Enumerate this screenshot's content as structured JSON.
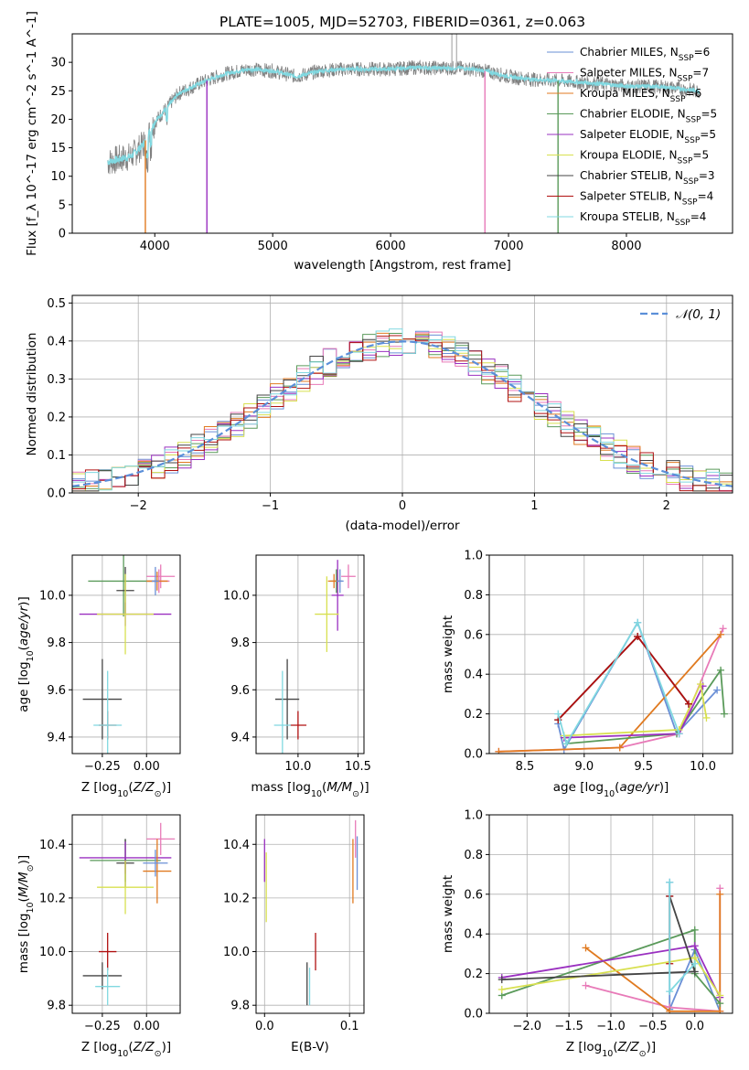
{
  "figure_title": "PLATE=1005, MJD=52703, FIBERID=0361, z=0.063",
  "legend": [
    {
      "label": "Chabrier MILES, N",
      "sub": "SSP",
      "suffix": "=6",
      "color": "#6a8fd6"
    },
    {
      "label": "Salpeter MILES, N",
      "sub": "SSP",
      "suffix": "=7",
      "color": "#e87ab8"
    },
    {
      "label": "Kroupa MILES, N",
      "sub": "SSP",
      "suffix": "=6",
      "color": "#e07a20"
    },
    {
      "label": "Chabrier ELODIE, N",
      "sub": "SSP",
      "suffix": "=5",
      "color": "#5a9a5a"
    },
    {
      "label": "Salpeter ELODIE, N",
      "sub": "SSP",
      "suffix": "=5",
      "color": "#9a30c0"
    },
    {
      "label": "Kroupa ELODIE, N",
      "sub": "SSP",
      "suffix": "=5",
      "color": "#d8e050"
    },
    {
      "label": "Chabrier STELIB, N",
      "sub": "SSP",
      "suffix": "=3",
      "color": "#444444"
    },
    {
      "label": "Salpeter STELIB, N",
      "sub": "SSP",
      "suffix": "=4",
      "color": "#b01010"
    },
    {
      "label": "Kroupa STELIB, N",
      "sub": "SSP",
      "suffix": "=4",
      "color": "#80d8e0"
    }
  ],
  "chart_data": [
    {
      "id": "spectrum",
      "type": "line",
      "title": "PLATE=1005, MJD=52703, FIBERID=0361, z=0.063",
      "xlabel": "wavelength [Angstrom, rest frame]",
      "ylabel": "Flux [f_λ 10^-17 erg cm^-2 s^-1 A^-1]",
      "xlim": [
        3300,
        8900
      ],
      "ylim": [
        0,
        35
      ],
      "xticks": [
        4000,
        5000,
        6000,
        7000,
        8000
      ],
      "yticks": [
        0,
        5,
        10,
        15,
        20,
        25,
        30
      ],
      "data_color": "#808080",
      "model_color": "#80d8e0",
      "continuum_points": [
        {
          "x": 3600,
          "y": 12.5
        },
        {
          "x": 3800,
          "y": 13.5
        },
        {
          "x": 3900,
          "y": 15.5
        },
        {
          "x": 4000,
          "y": 19.5
        },
        {
          "x": 4200,
          "y": 24.5
        },
        {
          "x": 4400,
          "y": 26.5
        },
        {
          "x": 4600,
          "y": 28
        },
        {
          "x": 4800,
          "y": 28.8
        },
        {
          "x": 5000,
          "y": 28.5
        },
        {
          "x": 5200,
          "y": 27.5
        },
        {
          "x": 5400,
          "y": 28.5
        },
        {
          "x": 5600,
          "y": 28.8
        },
        {
          "x": 5800,
          "y": 28.8
        },
        {
          "x": 6000,
          "y": 28.8
        },
        {
          "x": 6200,
          "y": 29.1
        },
        {
          "x": 6400,
          "y": 29
        },
        {
          "x": 6600,
          "y": 29
        },
        {
          "x": 6800,
          "y": 28.5
        },
        {
          "x": 7000,
          "y": 27.5
        },
        {
          "x": 7200,
          "y": 27
        },
        {
          "x": 7400,
          "y": 26.8
        },
        {
          "x": 7600,
          "y": 26.5
        },
        {
          "x": 7800,
          "y": 26.2
        },
        {
          "x": 8000,
          "y": 25.8
        },
        {
          "x": 8200,
          "y": 25.8
        },
        {
          "x": 8400,
          "y": 25.5
        },
        {
          "x": 8600,
          "y": 25
        }
      ],
      "spikes": [
        {
          "x": 3920,
          "y": 0
        },
        {
          "x": 4442,
          "y": 0
        },
        {
          "x": 6520,
          "y": 35
        },
        {
          "x": 6560,
          "y": 35
        },
        {
          "x": 6800,
          "y": 0
        },
        {
          "x": 7420,
          "y": 0
        }
      ]
    },
    {
      "id": "residual_hist",
      "type": "histogram",
      "xlabel": "(data-model)/error",
      "ylabel": "Normed distribution",
      "xlim": [
        -2.5,
        2.5
      ],
      "ylim": [
        0,
        0.52
      ],
      "xticks": [
        -2,
        -1,
        0,
        1,
        2
      ],
      "yticks": [
        0.0,
        0.1,
        0.2,
        0.3,
        0.4,
        0.5
      ],
      "legend_label": "𝒩(0, 1)",
      "gaussian_color": "#5b8fd9",
      "bin_width": 0.1
    },
    {
      "id": "age_vs_Z",
      "type": "scatter",
      "xlabel": "Z [log10(Z/Z⊙)]",
      "ylabel": "age [log10(age/yr)]",
      "xlim": [
        -0.42,
        0.19
      ],
      "ylim": [
        9.33,
        10.17
      ],
      "xticks": [
        -0.25,
        0.0
      ],
      "yticks": [
        9.4,
        9.6,
        9.8,
        10.0
      ],
      "points": [
        {
          "x": -0.25,
          "y": 9.56,
          "xerr": 0.11,
          "yerr": 0.17,
          "color": "#444444"
        },
        {
          "x": -0.22,
          "y": 9.45,
          "xerr": 0.05,
          "yerr": 0.06,
          "color": "#b01010"
        },
        {
          "x": -0.22,
          "y": 9.45,
          "xerr": 0.08,
          "yerr": 0.23,
          "color": "#80d8e0"
        },
        {
          "x": -0.13,
          "y": 10.06,
          "xerr": 0.2,
          "yerr": 0.15,
          "color": "#5a9a5a"
        },
        {
          "x": -0.12,
          "y": 10.02,
          "xerr": 0.05,
          "yerr": 0.1,
          "color": "#444444"
        },
        {
          "x": -0.12,
          "y": 9.92,
          "xerr": 0.26,
          "yerr": 0.05,
          "color": "#9a30c0"
        },
        {
          "x": -0.12,
          "y": 9.92,
          "xerr": 0.16,
          "yerr": 0.17,
          "color": "#d8e050"
        },
        {
          "x": 0.07,
          "y": 10.06,
          "xerr": 0.06,
          "yerr": 0.05,
          "color": "#e87ab8"
        },
        {
          "x": 0.08,
          "y": 10.08,
          "xerr": 0.08,
          "yerr": 0.05,
          "color": "#e87ab8"
        },
        {
          "x": 0.06,
          "y": 10.06,
          "xerr": 0.06,
          "yerr": 0.04,
          "color": "#e07a20"
        },
        {
          "x": 0.05,
          "y": 10.06,
          "xerr": 0.02,
          "yerr": 0.06,
          "color": "#6a8fd6"
        }
      ]
    },
    {
      "id": "age_vs_mass",
      "type": "scatter",
      "xlabel": "mass [log10(M/M⊙)]",
      "ylabel": "",
      "xlim": [
        9.65,
        10.55
      ],
      "ylim": [
        9.33,
        10.17
      ],
      "xticks": [
        10.0,
        10.5
      ],
      "yticks": [
        9.4,
        9.6,
        9.8,
        10.0
      ],
      "points": [
        {
          "x": 9.91,
          "y": 9.56,
          "xerr": 0.1,
          "yerr": 0.17,
          "color": "#444444"
        },
        {
          "x": 10.0,
          "y": 9.45,
          "xerr": 0.07,
          "yerr": 0.06,
          "color": "#b01010"
        },
        {
          "x": 9.87,
          "y": 9.45,
          "xerr": 0.07,
          "yerr": 0.23,
          "color": "#80d8e0"
        },
        {
          "x": 10.32,
          "y": 10.06,
          "xerr": 0.05,
          "yerr": 0.05,
          "color": "#5a9a5a"
        },
        {
          "x": 10.33,
          "y": 10.0,
          "xerr": 0.05,
          "yerr": 0.15,
          "color": "#9a30c0"
        },
        {
          "x": 10.24,
          "y": 9.92,
          "xerr": 0.1,
          "yerr": 0.16,
          "color": "#d8e050"
        },
        {
          "x": 10.42,
          "y": 10.08,
          "xerr": 0.06,
          "yerr": 0.05,
          "color": "#e87ab8"
        },
        {
          "x": 10.3,
          "y": 10.06,
          "xerr": 0.05,
          "yerr": 0.03,
          "color": "#e07a20"
        },
        {
          "x": 10.35,
          "y": 10.06,
          "xerr": 0.03,
          "yerr": 0.05,
          "color": "#6a8fd6"
        }
      ]
    },
    {
      "id": "massweight_vs_age",
      "type": "line",
      "xlabel": "age [log10(age/yr)]",
      "ylabel": "mass weight",
      "xlim": [
        8.2,
        10.25
      ],
      "ylim": [
        0.0,
        1.0
      ],
      "xticks": [
        8.5,
        9.0,
        9.5,
        10.0
      ],
      "yticks": [
        0.0,
        0.2,
        0.4,
        0.6,
        0.8,
        1.0
      ],
      "series": [
        {
          "color": "#6a8fd6",
          "x": [
            8.78,
            8.83,
            9.45,
            9.78,
            10.12
          ],
          "y": [
            0.15,
            0.02,
            0.66,
            0.1,
            0.32
          ]
        },
        {
          "color": "#e87ab8",
          "x": [
            8.28,
            9.3,
            9.8,
            10.17
          ],
          "y": [
            0.01,
            0.03,
            0.1,
            0.63
          ]
        },
        {
          "color": "#e07a20",
          "x": [
            8.28,
            9.3,
            10.15
          ],
          "y": [
            0.01,
            0.03,
            0.6
          ]
        },
        {
          "color": "#5a9a5a",
          "x": [
            8.85,
            9.78,
            10.15,
            10.18
          ],
          "y": [
            0.05,
            0.1,
            0.42,
            0.2
          ]
        },
        {
          "color": "#9a30c0",
          "x": [
            8.83,
            9.8,
            10.0
          ],
          "y": [
            0.08,
            0.1,
            0.34
          ]
        },
        {
          "color": "#d8e050",
          "x": [
            8.83,
            9.8,
            9.98,
            10.03
          ],
          "y": [
            0.09,
            0.12,
            0.35,
            0.18
          ]
        },
        {
          "color": "#444444",
          "x": [
            8.78,
            9.45,
            9.88
          ],
          "y": [
            0.17,
            0.59,
            0.25
          ]
        },
        {
          "color": "#b01010",
          "x": [
            8.78,
            9.45,
            9.88
          ],
          "y": [
            0.17,
            0.59,
            0.25
          ]
        },
        {
          "color": "#80d8e0",
          "x": [
            8.78,
            8.85,
            9.45,
            9.8
          ],
          "y": [
            0.2,
            0.05,
            0.66,
            0.1
          ]
        }
      ]
    },
    {
      "id": "mass_vs_Z",
      "type": "scatter",
      "xlabel": "Z [log10(Z/Z⊙)]",
      "ylabel": "mass [log10(M/M⊙)]",
      "xlim": [
        -0.42,
        0.19
      ],
      "ylim": [
        9.77,
        10.51
      ],
      "xticks": [
        -0.25,
        0.0
      ],
      "yticks": [
        9.8,
        10.0,
        10.2,
        10.4
      ],
      "points": [
        {
          "x": -0.25,
          "y": 9.91,
          "xerr": 0.11,
          "yerr": 0.05,
          "color": "#444444"
        },
        {
          "x": -0.22,
          "y": 10.0,
          "xerr": 0.05,
          "yerr": 0.07,
          "color": "#b01010"
        },
        {
          "x": -0.22,
          "y": 9.87,
          "xerr": 0.07,
          "yerr": 0.07,
          "color": "#80d8e0"
        },
        {
          "x": -0.12,
          "y": 10.34,
          "xerr": 0.2,
          "yerr": 0.08,
          "color": "#5a9a5a"
        },
        {
          "x": -0.12,
          "y": 10.33,
          "xerr": 0.05,
          "yerr": 0.09,
          "color": "#444444"
        },
        {
          "x": -0.12,
          "y": 10.35,
          "xerr": 0.26,
          "yerr": 0.06,
          "color": "#9a30c0"
        },
        {
          "x": -0.12,
          "y": 10.24,
          "xerr": 0.16,
          "yerr": 0.1,
          "color": "#d8e050"
        },
        {
          "x": 0.08,
          "y": 10.42,
          "xerr": 0.08,
          "yerr": 0.06,
          "color": "#e87ab8"
        },
        {
          "x": 0.06,
          "y": 10.3,
          "xerr": 0.08,
          "yerr": 0.12,
          "color": "#e07a20"
        },
        {
          "x": 0.05,
          "y": 10.33,
          "xerr": 0.07,
          "yerr": 0.05,
          "color": "#6a8fd6"
        }
      ]
    },
    {
      "id": "mass_vs_ebv",
      "type": "scatter",
      "xlabel": "E(B-V)",
      "ylabel": "",
      "xlim": [
        -0.01,
        0.117
      ],
      "ylim": [
        9.77,
        10.51
      ],
      "xticks": [
        0.0,
        0.1
      ],
      "yticks": [
        9.8,
        10.0,
        10.2,
        10.4
      ],
      "points": [
        {
          "x": 0.0,
          "y": 10.34,
          "xerr": 0,
          "yerr": 0.08,
          "color": "#9a30c0"
        },
        {
          "x": 0.002,
          "y": 10.24,
          "xerr": 0,
          "yerr": 0.13,
          "color": "#d8e050"
        },
        {
          "x": 0.05,
          "y": 9.88,
          "xerr": 0,
          "yerr": 0.08,
          "color": "#444444"
        },
        {
          "x": 0.053,
          "y": 9.87,
          "xerr": 0,
          "yerr": 0.07,
          "color": "#80d8e0"
        },
        {
          "x": 0.06,
          "y": 10.0,
          "xerr": 0,
          "yerr": 0.07,
          "color": "#b01010"
        },
        {
          "x": 0.104,
          "y": 10.3,
          "xerr": 0,
          "yerr": 0.12,
          "color": "#e07a20"
        },
        {
          "x": 0.107,
          "y": 10.42,
          "xerr": 0,
          "yerr": 0.07,
          "color": "#e87ab8"
        },
        {
          "x": 0.109,
          "y": 10.33,
          "xerr": 0,
          "yerr": 0.1,
          "color": "#6a8fd6"
        }
      ]
    },
    {
      "id": "massweight_vs_Z",
      "type": "line",
      "xlabel": "Z [log10(Z/Z⊙)]",
      "ylabel": "mass weight",
      "xlim": [
        -2.45,
        0.45
      ],
      "ylim": [
        0.0,
        1.0
      ],
      "xticks": [
        -2.0,
        -1.5,
        -1.0,
        -0.5,
        0.0
      ],
      "yticks": [
        0.0,
        0.2,
        0.4,
        0.6,
        0.8,
        1.0
      ],
      "series": [
        {
          "color": "#6a8fd6",
          "x": [
            -0.3,
            -0.3,
            0.0,
            0.3
          ],
          "y": [
            0.66,
            0.02,
            0.32,
            0.01
          ]
        },
        {
          "color": "#e87ab8",
          "x": [
            -1.3,
            -0.3,
            0.3,
            0.3
          ],
          "y": [
            0.14,
            0.03,
            0.01,
            0.63
          ]
        },
        {
          "color": "#e07a20",
          "x": [
            -1.3,
            -0.3,
            0.3,
            0.3
          ],
          "y": [
            0.33,
            0.01,
            0.01,
            0.6
          ]
        },
        {
          "color": "#5a9a5a",
          "x": [
            -2.3,
            0.0,
            0.0,
            0.3
          ],
          "y": [
            0.09,
            0.42,
            0.2,
            0.05
          ]
        },
        {
          "color": "#9a30c0",
          "x": [
            -2.3,
            0.0,
            0.3
          ],
          "y": [
            0.18,
            0.34,
            0.08
          ]
        },
        {
          "color": "#d8e050",
          "x": [
            -2.3,
            0.0,
            0.3
          ],
          "y": [
            0.12,
            0.28,
            0.09
          ]
        },
        {
          "color": "#444444",
          "x": [
            -2.3,
            0.0,
            -0.3
          ],
          "y": [
            0.17,
            0.21,
            0.59
          ]
        },
        {
          "color": "#b01010",
          "x": [
            -0.3,
            -0.3
          ],
          "y": [
            0.59,
            0.25
          ]
        },
        {
          "color": "#80d8e0",
          "x": [
            -0.3,
            -0.3,
            0.0
          ],
          "y": [
            0.66,
            0.11,
            0.25
          ]
        }
      ]
    }
  ]
}
